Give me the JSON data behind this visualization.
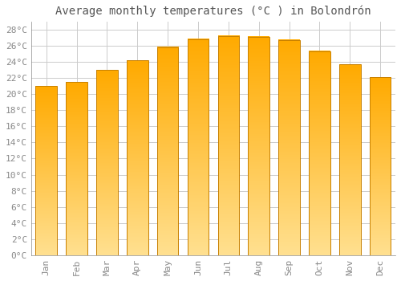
{
  "title": "Average monthly temperatures (°C ) in Bolondrón",
  "months": [
    "Jan",
    "Feb",
    "Mar",
    "Apr",
    "May",
    "Jun",
    "Jul",
    "Aug",
    "Sep",
    "Oct",
    "Nov",
    "Dec"
  ],
  "values": [
    21.0,
    21.5,
    23.0,
    24.2,
    25.8,
    26.8,
    27.2,
    27.1,
    26.7,
    25.3,
    23.7,
    22.1
  ],
  "bar_color_top": "#FFAA00",
  "bar_color_bottom": "#FFE090",
  "bar_edge_color": "#C88000",
  "background_color": "#FFFFFF",
  "grid_color": "#CCCCCC",
  "tick_label_color": "#888888",
  "title_color": "#555555",
  "ylim": [
    0,
    29
  ],
  "yticks": [
    0,
    2,
    4,
    6,
    8,
    10,
    12,
    14,
    16,
    18,
    20,
    22,
    24,
    26,
    28
  ],
  "title_fontsize": 10,
  "tick_fontsize": 8,
  "bar_width": 0.7,
  "figsize": [
    5.0,
    3.5
  ],
  "dpi": 100
}
